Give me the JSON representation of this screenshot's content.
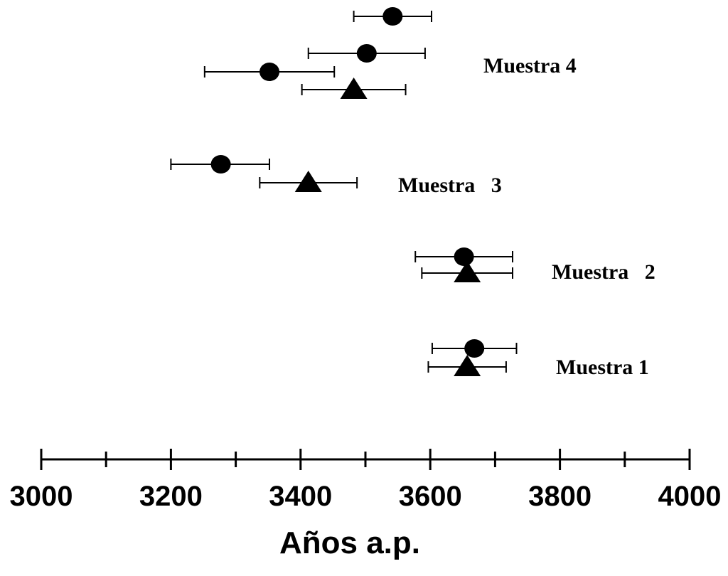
{
  "chart_data": {
    "type": "scatter",
    "xlabel": "Años a.p.",
    "xlim": [
      3000,
      4000
    ],
    "x_ticks": [
      3000,
      3200,
      3400,
      3600,
      3800,
      4000
    ],
    "x_minor_ticks": [
      3100,
      3300,
      3500,
      3700,
      3900
    ],
    "grid": false,
    "groups": [
      {
        "name": "Muestra 1",
        "points": [
          {
            "marker": "circle",
            "x": 3668,
            "low": 3603,
            "high": 3733
          },
          {
            "marker": "triangle",
            "x": 3657,
            "low": 3597,
            "high": 3717
          }
        ]
      },
      {
        "name": "Muestra   2",
        "points": [
          {
            "marker": "circle",
            "x": 3652,
            "low": 3577,
            "high": 3727
          },
          {
            "marker": "triangle",
            "x": 3657,
            "low": 3587,
            "high": 3727
          }
        ]
      },
      {
        "name": "Muestra   3",
        "points": [
          {
            "marker": "circle",
            "x": 3277,
            "low": 3200,
            "high": 3352
          },
          {
            "marker": "triangle",
            "x": 3412,
            "low": 3337,
            "high": 3487
          }
        ]
      },
      {
        "name": "Muestra 4",
        "points": [
          {
            "marker": "circle",
            "x": 3542,
            "low": 3482,
            "high": 3602
          },
          {
            "marker": "circle",
            "x": 3502,
            "low": 3412,
            "high": 3592
          },
          {
            "marker": "circle",
            "x": 3352,
            "low": 3252,
            "high": 3452
          },
          {
            "marker": "triangle",
            "x": 3482,
            "low": 3402,
            "high": 3562
          }
        ]
      }
    ]
  }
}
